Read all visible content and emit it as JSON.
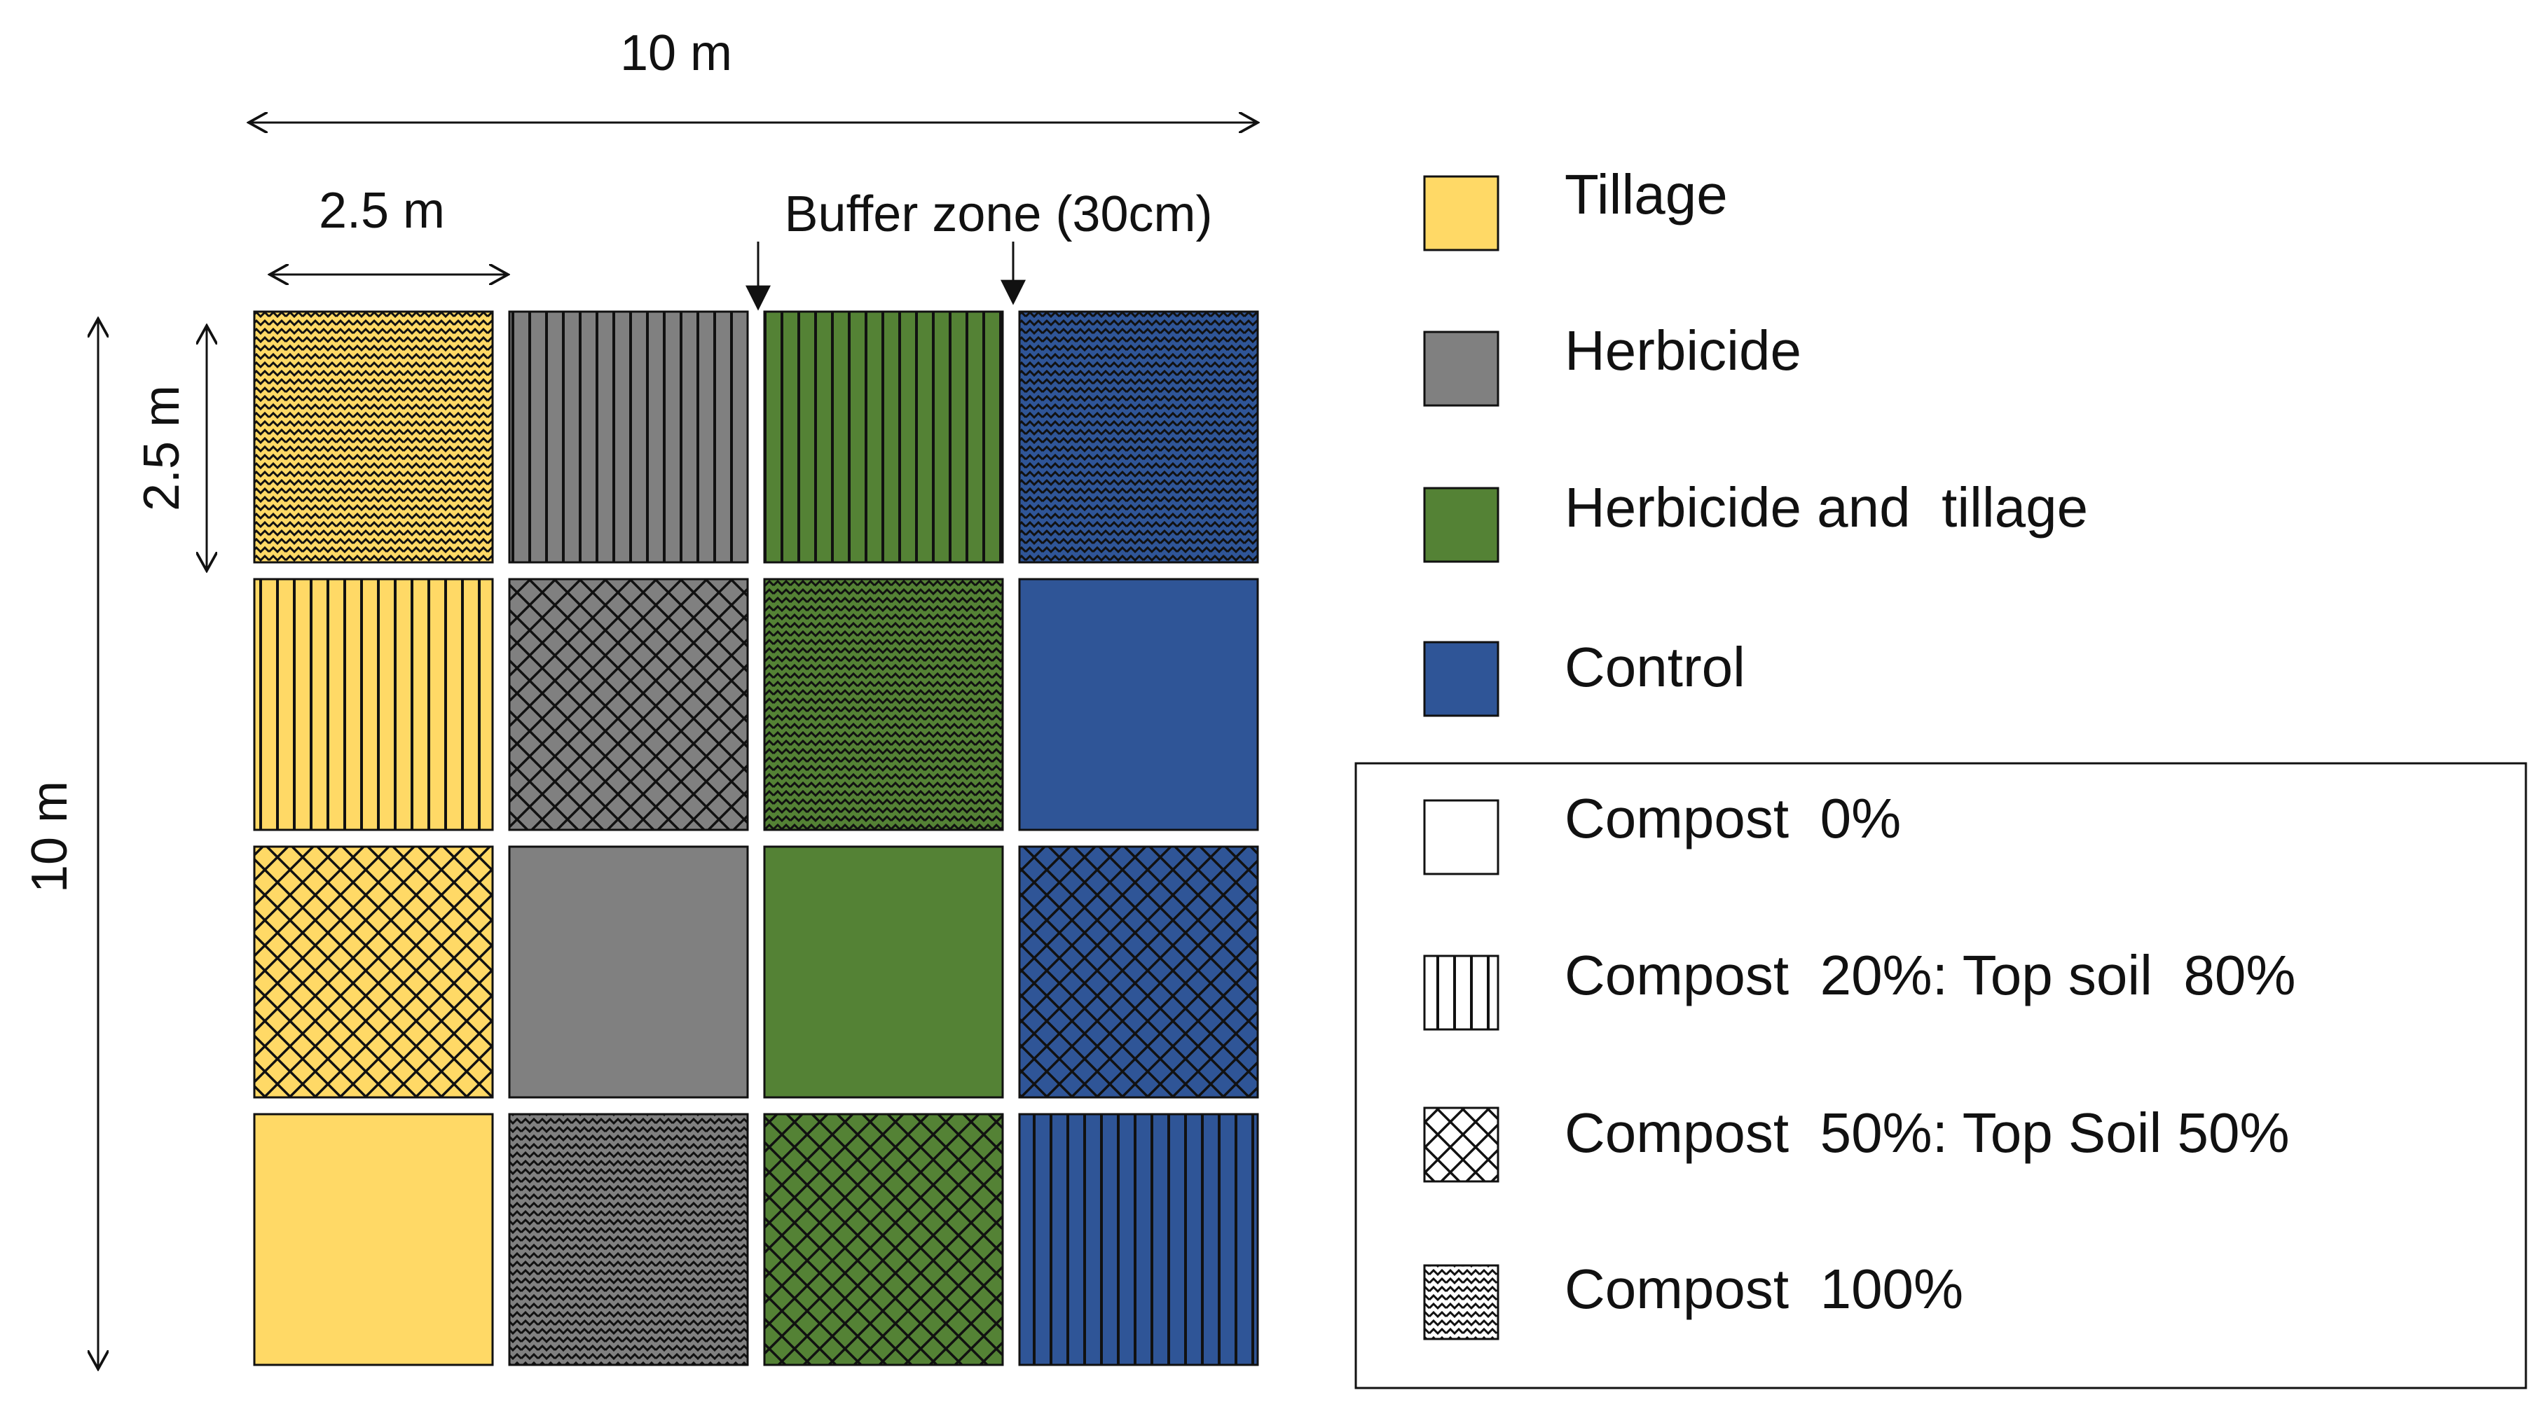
{
  "colors": {
    "tillage": "#FFD966",
    "herbicide": "#808080",
    "herbicide_tillage": "#548235",
    "control": "#2F5597",
    "compost_none": "#FFFFFF"
  },
  "dimensions": {
    "total_width": "10 m",
    "total_height": "10 m",
    "plot_width": "2.5 m",
    "plot_height": "2.5 m",
    "buffer": "Buffer zone (30cm)"
  },
  "grid": [
    [
      {
        "treatment": "tillage",
        "compost": "c100"
      },
      {
        "treatment": "herbicide",
        "compost": "c20"
      },
      {
        "treatment": "herbicide_tillage",
        "compost": "c20"
      },
      {
        "treatment": "control",
        "compost": "c100"
      }
    ],
    [
      {
        "treatment": "tillage",
        "compost": "c20"
      },
      {
        "treatment": "herbicide",
        "compost": "c50"
      },
      {
        "treatment": "herbicide_tillage",
        "compost": "c100"
      },
      {
        "treatment": "control",
        "compost": "c0"
      }
    ],
    [
      {
        "treatment": "tillage",
        "compost": "c50"
      },
      {
        "treatment": "herbicide",
        "compost": "c0"
      },
      {
        "treatment": "herbicide_tillage",
        "compost": "c0"
      },
      {
        "treatment": "control",
        "compost": "c50"
      }
    ],
    [
      {
        "treatment": "tillage",
        "compost": "c0"
      },
      {
        "treatment": "herbicide",
        "compost": "c100"
      },
      {
        "treatment": "herbicide_tillage",
        "compost": "c50"
      },
      {
        "treatment": "control",
        "compost": "c20"
      }
    ]
  ],
  "legend": {
    "treatments": [
      {
        "key": "tillage",
        "label": "Tillage"
      },
      {
        "key": "herbicide",
        "label": "Herbicide"
      },
      {
        "key": "herbicide_tillage",
        "label": "Herbicide and  tillage"
      },
      {
        "key": "control",
        "label": "Control"
      }
    ],
    "compost": [
      {
        "key": "c0",
        "label": "Compost  0%"
      },
      {
        "key": "c20",
        "label": "Compost  20%: Top soil  80%"
      },
      {
        "key": "c50",
        "label": "Compost  50%: Top Soil 50%"
      },
      {
        "key": "c100",
        "label": "Compost  100%"
      }
    ]
  }
}
